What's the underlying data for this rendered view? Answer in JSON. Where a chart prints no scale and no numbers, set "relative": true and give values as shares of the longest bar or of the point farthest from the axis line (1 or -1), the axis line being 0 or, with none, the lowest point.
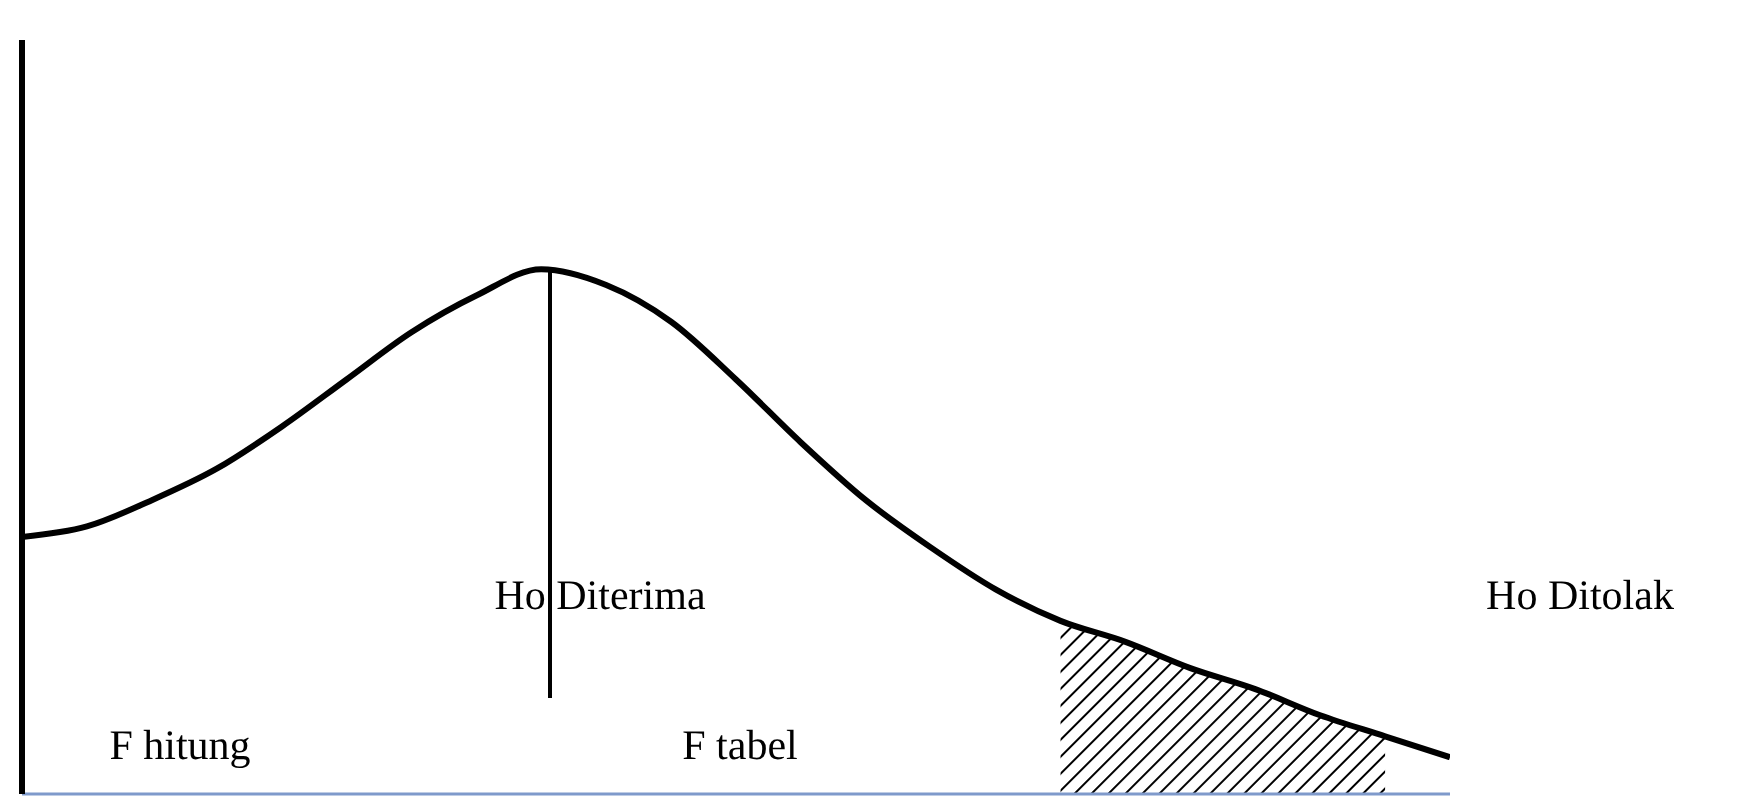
{
  "chart_data": {
    "type": "line",
    "relative": true,
    "grid": false,
    "legend": false,
    "marker": "none",
    "categories": [
      null,
      null,
      null,
      null,
      null,
      null,
      null,
      null,
      null,
      null,
      null,
      null,
      null,
      null,
      null,
      null,
      null,
      null,
      null,
      null,
      null,
      null,
      null
    ],
    "series": [
      {
        "color": "#000000",
        "values": [
          0.49,
          0.51,
          0.56,
          0.62,
          0.7,
          0.79,
          0.88,
          0.95,
          1.0,
          0.97,
          0.9,
          0.79,
          0.67,
          0.56,
          0.47,
          0.39,
          0.33,
          0.29,
          0.24,
          0.2,
          0.15,
          0.11,
          0.07
        ]
      },
      {
        "type": "area",
        "color": "#000000",
        "values": [
          null,
          null,
          null,
          null,
          null,
          null,
          null,
          null,
          null,
          null,
          null,
          null,
          null,
          null,
          null,
          null,
          0.33,
          0.29,
          0.24,
          0.2,
          0.15,
          0.11,
          null
        ]
      }
    ],
    "annotations": [
      "Ho Diterima",
      "Ho Ditolak",
      "F hitung",
      "F tabel"
    ]
  }
}
